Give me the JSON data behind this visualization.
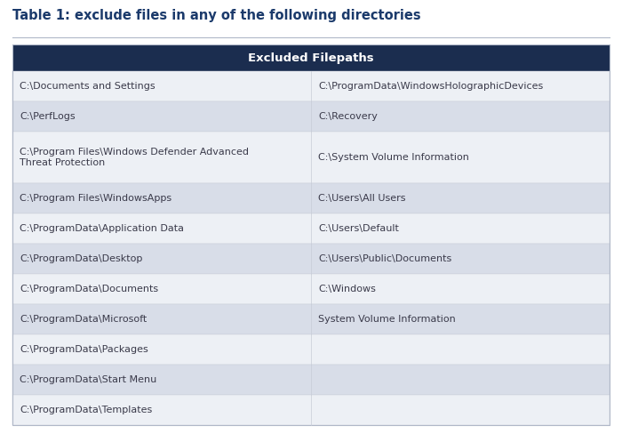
{
  "title": "Table 1: exclude files in any of the following directories",
  "title_color": "#1b3a6b",
  "title_fontsize": 10.5,
  "header_text": "Excluded Filepaths",
  "header_bg": "#1b2d4f",
  "header_text_color": "#ffffff",
  "header_fontsize": 9.5,
  "row_data": [
    [
      "C:\\Documents and Settings",
      "C:\\ProgramData\\WindowsHolographicDevices"
    ],
    [
      "C:\\PerfLogs",
      "C:\\Recovery"
    ],
    [
      "C:\\Program Files\\Windows Defender Advanced\nThreat Protection",
      "C:\\System Volume Information"
    ],
    [
      "C:\\Program Files\\WindowsApps",
      "C:\\Users\\All Users"
    ],
    [
      "C:\\ProgramData\\Application Data",
      "C:\\Users\\Default"
    ],
    [
      "C:\\ProgramData\\Desktop",
      "C:\\Users\\Public\\Documents"
    ],
    [
      "C:\\ProgramData\\Documents",
      "C:\\Windows"
    ],
    [
      "C:\\ProgramData\\Microsoft",
      "System Volume Information"
    ],
    [
      "C:\\ProgramData\\Packages",
      ""
    ],
    [
      "C:\\ProgramData\\Start Menu",
      ""
    ],
    [
      "C:\\ProgramData\\Templates",
      ""
    ]
  ],
  "row_colors": [
    "#edf0f5",
    "#d8dde8"
  ],
  "cell_text_color": "#3a3a4a",
  "cell_fontsize": 8.0,
  "bg_color": "#ffffff",
  "outer_border_color": "#b0b8c8",
  "inner_border_color": "#c8cdd8",
  "fig_width": 7.0,
  "fig_height": 4.88,
  "dpi": 100
}
